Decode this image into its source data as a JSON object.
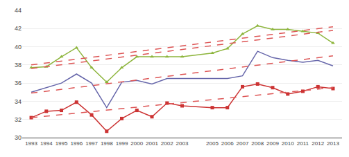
{
  "chart_data": {
    "type": "line",
    "x": [
      1993,
      1994,
      1995,
      1996,
      1997,
      1998,
      1999,
      2000,
      2001,
      2002,
      2003,
      2005,
      2006,
      2007,
      2008,
      2009,
      2010,
      2011,
      2012,
      2013
    ],
    "series": [
      {
        "color": "#8db53c",
        "marker": "triangle",
        "line_style": "solid",
        "values": [
          37.7,
          37.8,
          38.9,
          39.9,
          37.7,
          36.1,
          37.7,
          38.9,
          38.9,
          38.9,
          38.9,
          39.3,
          39.8,
          41.4,
          42.3,
          41.9,
          41.9,
          41.7,
          41.5,
          40.4
        ]
      },
      {
        "color": "#6666aa",
        "marker": "none",
        "line_style": "solid",
        "values": [
          35.0,
          35.5,
          36.0,
          37.0,
          36.0,
          33.3,
          36.1,
          36.3,
          35.9,
          36.5,
          36.5,
          36.5,
          36.5,
          36.8,
          39.5,
          38.8,
          38.5,
          38.3,
          38.5,
          37.9
        ]
      },
      {
        "color": "#cc3333",
        "marker": "square",
        "line_style": "solid",
        "values": [
          32.2,
          32.9,
          33.0,
          33.9,
          32.5,
          30.7,
          32.1,
          33.0,
          32.3,
          33.8,
          33.5,
          33.3,
          33.3,
          35.6,
          35.9,
          35.5,
          34.8,
          35.1,
          35.6,
          35.4
        ]
      },
      {
        "color": "#dd5555",
        "marker": "none",
        "line_style": "dashed",
        "x": [
          1993,
          2013
        ],
        "values": [
          38.0,
          42.2
        ]
      },
      {
        "color": "#dd5555",
        "marker": "none",
        "line_style": "dashed",
        "x": [
          1993,
          2013
        ],
        "values": [
          37.6,
          41.8
        ]
      },
      {
        "color": "#dd5555",
        "marker": "none",
        "line_style": "dashed",
        "x": [
          1993,
          2013
        ],
        "values": [
          34.9,
          39.0
        ]
      },
      {
        "color": "#dd5555",
        "marker": "none",
        "line_style": "dashed",
        "x": [
          1993,
          2013
        ],
        "values": [
          32.2,
          35.5
        ]
      }
    ],
    "xlim": [
      1992.4,
      2013.6
    ],
    "xticks": [
      1993,
      1994,
      1995,
      1996,
      1997,
      1998,
      1999,
      2000,
      2001,
      2002,
      2003,
      2005,
      2006,
      2007,
      2008,
      2009,
      2010,
      2011,
      2012,
      2013
    ],
    "ylim": [
      30,
      44
    ],
    "yticks": [
      30,
      32,
      34,
      36,
      38,
      40,
      42,
      44
    ],
    "grid": true
  }
}
